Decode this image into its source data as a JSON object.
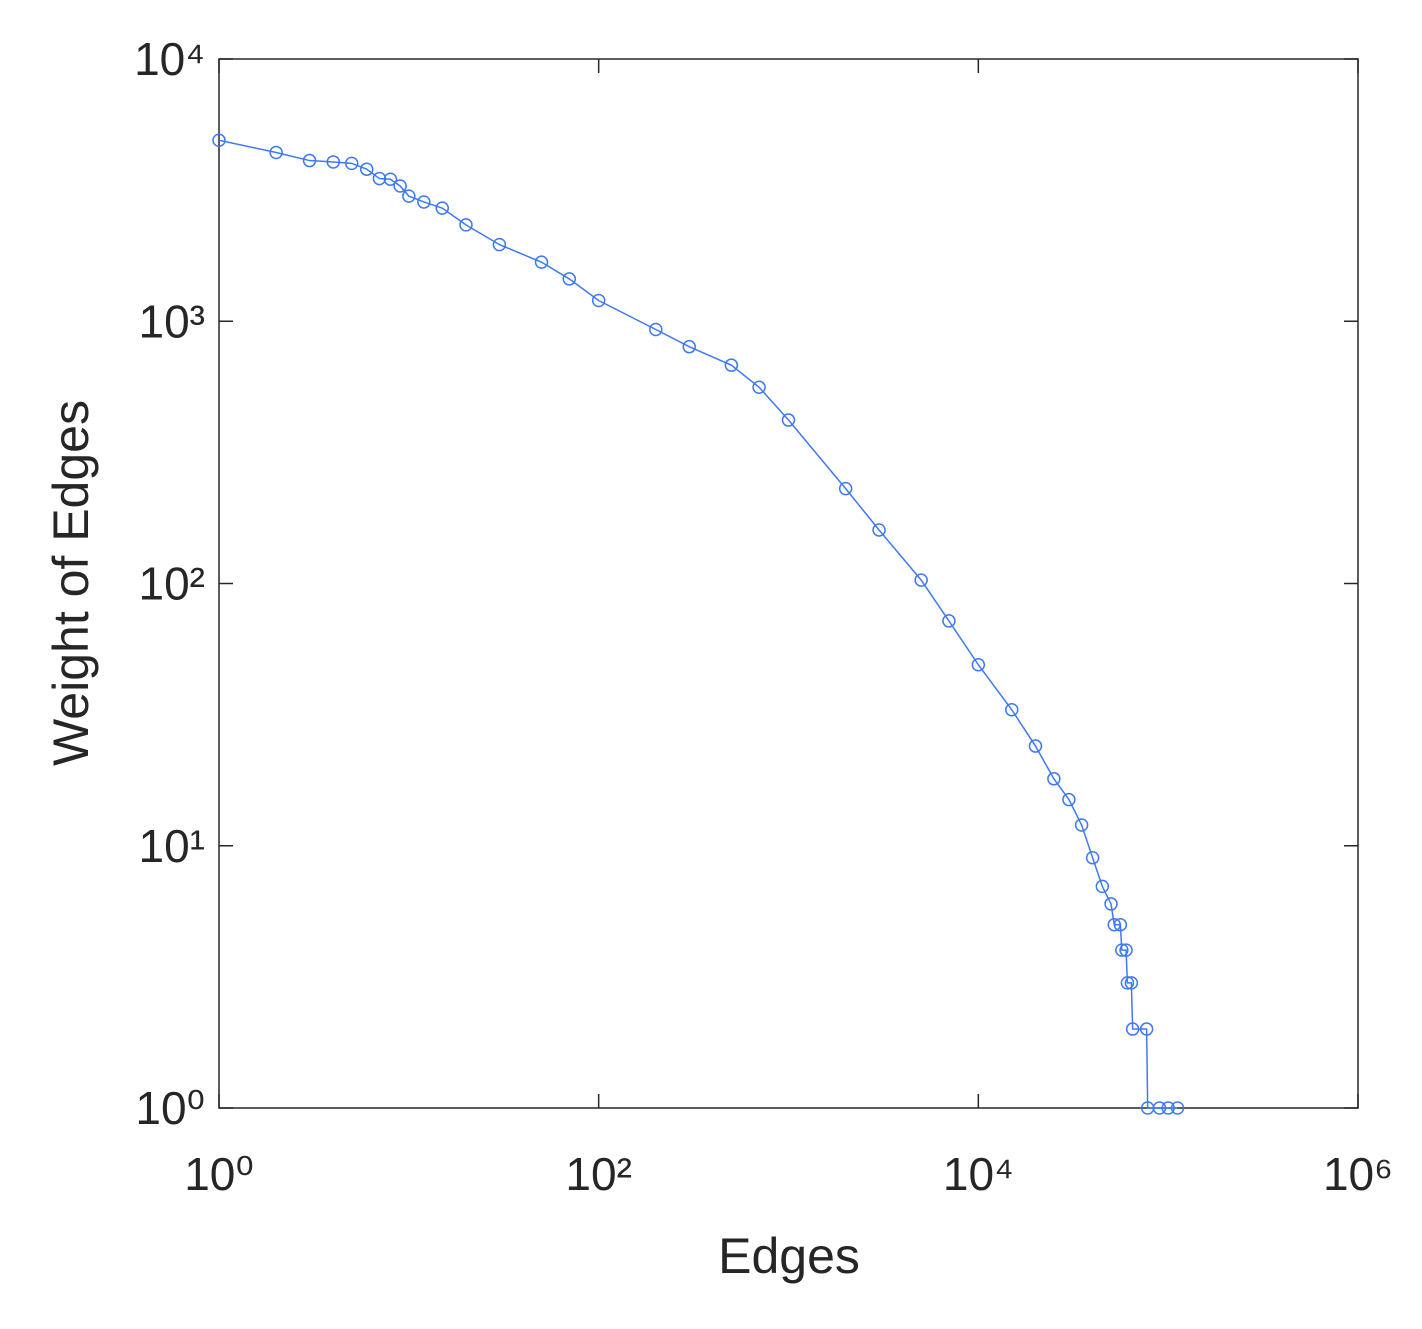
{
  "chart_data": {
    "type": "line",
    "xlabel": "Edges",
    "ylabel": "Weight of Edges",
    "xscale": "log",
    "yscale": "log",
    "xlim": [
      1,
      1000000
    ],
    "ylim": [
      1,
      10000
    ],
    "xticks": [
      {
        "value": 1,
        "label": "10⁰"
      },
      {
        "value": 100,
        "label": "10²"
      },
      {
        "value": 10000,
        "label": "10⁴"
      },
      {
        "value": 1000000,
        "label": "10⁶"
      }
    ],
    "yticks": [
      {
        "value": 1,
        "label": "10⁰"
      },
      {
        "value": 10,
        "label": "10¹"
      },
      {
        "value": 100,
        "label": "10²"
      },
      {
        "value": 1000,
        "label": "10³"
      },
      {
        "value": 10000,
        "label": "10⁴"
      }
    ],
    "marker": "circle",
    "series": [
      {
        "color": "#3f79f2",
        "x": [
          1,
          2,
          3,
          4,
          5,
          6,
          7,
          8,
          9,
          10,
          12,
          15,
          20,
          30,
          50,
          70,
          100,
          200,
          300,
          500,
          700,
          1000,
          2000,
          3000,
          5000,
          7000,
          10000,
          15000,
          20000,
          25000,
          30000,
          35000,
          40000,
          45000,
          50000,
          52000,
          56000,
          57000,
          60000,
          61000,
          64000,
          65000,
          77000,
          78000,
          90000,
          100000,
          112000
        ],
        "values": [
          4900,
          4400,
          4100,
          4050,
          4000,
          3800,
          3500,
          3480,
          3280,
          3000,
          2850,
          2700,
          2330,
          1960,
          1680,
          1450,
          1200,
          930,
          800,
          680,
          560,
          420,
          230,
          160,
          103,
          72,
          49,
          33,
          24,
          18,
          15,
          12,
          9,
          7,
          6,
          5,
          5,
          4,
          4,
          3,
          3,
          2,
          2,
          1,
          1,
          1,
          1
        ]
      }
    ]
  }
}
